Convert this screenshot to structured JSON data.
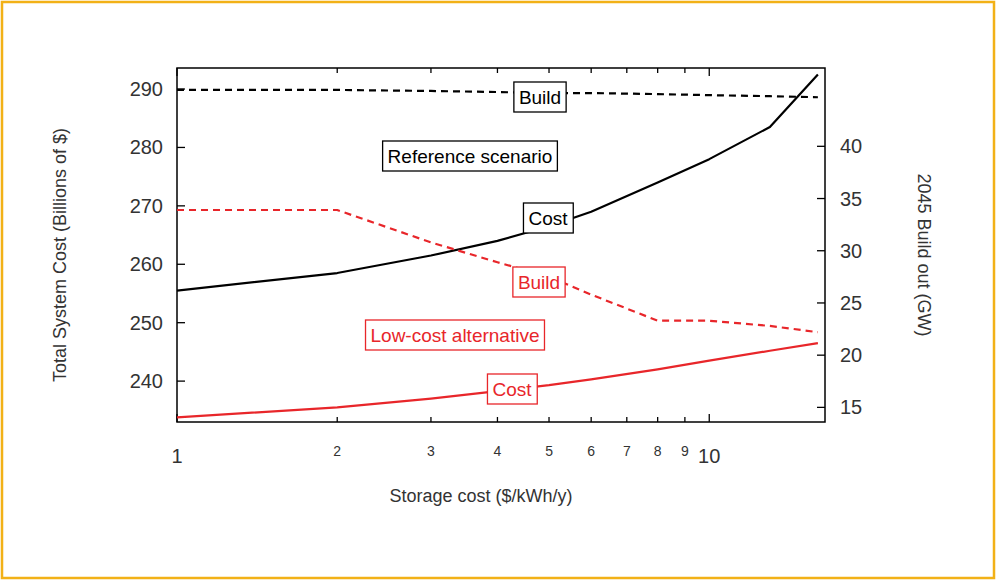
{
  "chart_data": {
    "type": "line",
    "xlabel": "Storage cost ($/kWh/y)",
    "ylabel": "Total System Cost (Billions of $)",
    "y2label": "2045 Build out (GW)",
    "log": "x",
    "grid": false,
    "x": [
      1,
      2,
      3,
      4,
      5,
      6,
      8,
      10,
      13,
      16
    ],
    "xlim": [
      1,
      16.5
    ],
    "xticks": [
      1,
      2,
      3,
      4,
      5,
      6,
      7,
      8,
      9,
      10
    ],
    "ylim": [
      233,
      293.6
    ],
    "yticks": [
      240,
      250,
      260,
      270,
      280,
      290
    ],
    "y2lim": [
      13.6,
      47.5
    ],
    "y2ticks": [
      15,
      20,
      25,
      30,
      35,
      40
    ],
    "series": [
      {
        "color": "#000000",
        "line_style": "solid",
        "values": [
          255.5,
          258.5,
          261.5,
          264,
          266.5,
          269,
          274,
          278,
          283.5,
          292.5
        ]
      },
      {
        "color": "#000000",
        "line_style": "dashed",
        "axis": "y2",
        "values": [
          45.4,
          45.4,
          45.3,
          45.2,
          45.1,
          45.1,
          45.0,
          44.9,
          44.8,
          44.7
        ]
      },
      {
        "color": "#e8262a",
        "line_style": "solid",
        "values": [
          233.8,
          235.5,
          237,
          238.3,
          239.3,
          240.3,
          242,
          243.5,
          245.2,
          246.5
        ]
      },
      {
        "color": "#e8262a",
        "line_style": "dashed",
        "axis": "y2",
        "values": [
          33.9,
          33.9,
          30.8,
          28.9,
          27.5,
          25.8,
          23.3,
          23.3,
          22.8,
          22.2
        ]
      }
    ],
    "annotations": [
      {
        "text": "Build",
        "color": "#000000"
      },
      {
        "text": "Reference scenario",
        "color": "#000000"
      },
      {
        "text": "Cost",
        "color": "#000000"
      },
      {
        "text": "Build",
        "color": "#e8262a"
      },
      {
        "text": "Low-cost alternative",
        "color": "#e8262a"
      },
      {
        "text": "Cost",
        "color": "#e8262a"
      }
    ]
  }
}
